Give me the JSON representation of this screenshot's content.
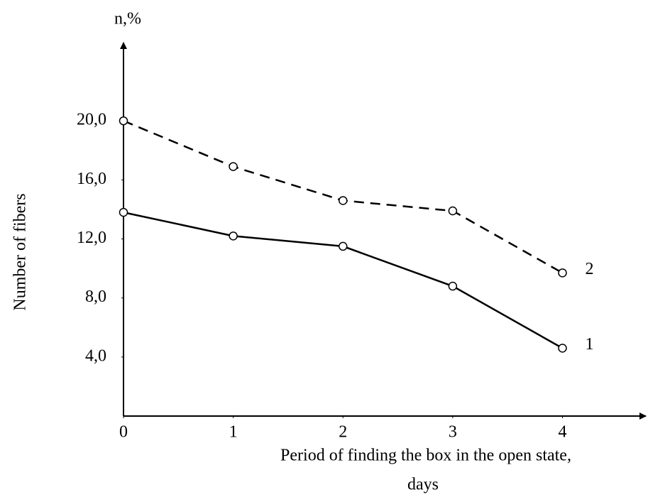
{
  "chart_data": {
    "type": "line",
    "y_unit_label": "n,%",
    "ylabel": "Number of fibers",
    "xlabel": [
      "Period of finding the box in the open state,",
      "days"
    ],
    "x": [
      0,
      1,
      2,
      3,
      4
    ],
    "series": [
      {
        "name": "1",
        "color": "#000000",
        "linestyle": "solid",
        "values": [
          13.8,
          12.2,
          11.5,
          8.8,
          4.6
        ]
      },
      {
        "name": "2",
        "color": "#000000",
        "linestyle": "dashed",
        "values": [
          20.0,
          16.9,
          14.6,
          13.9,
          9.7
        ]
      }
    ],
    "xlim": [
      0,
      4.76
    ],
    "xticks": [
      0,
      1,
      2,
      3,
      4
    ],
    "ylim": [
      0,
      25.3
    ],
    "yticks": [
      {
        "value": 4,
        "label": "4,0"
      },
      {
        "value": 8,
        "label": "8,0"
      },
      {
        "value": 12,
        "label": "12,0"
      },
      {
        "value": 16,
        "label": "16,0"
      },
      {
        "value": 20,
        "label": "20,0"
      }
    ],
    "grid": false
  }
}
